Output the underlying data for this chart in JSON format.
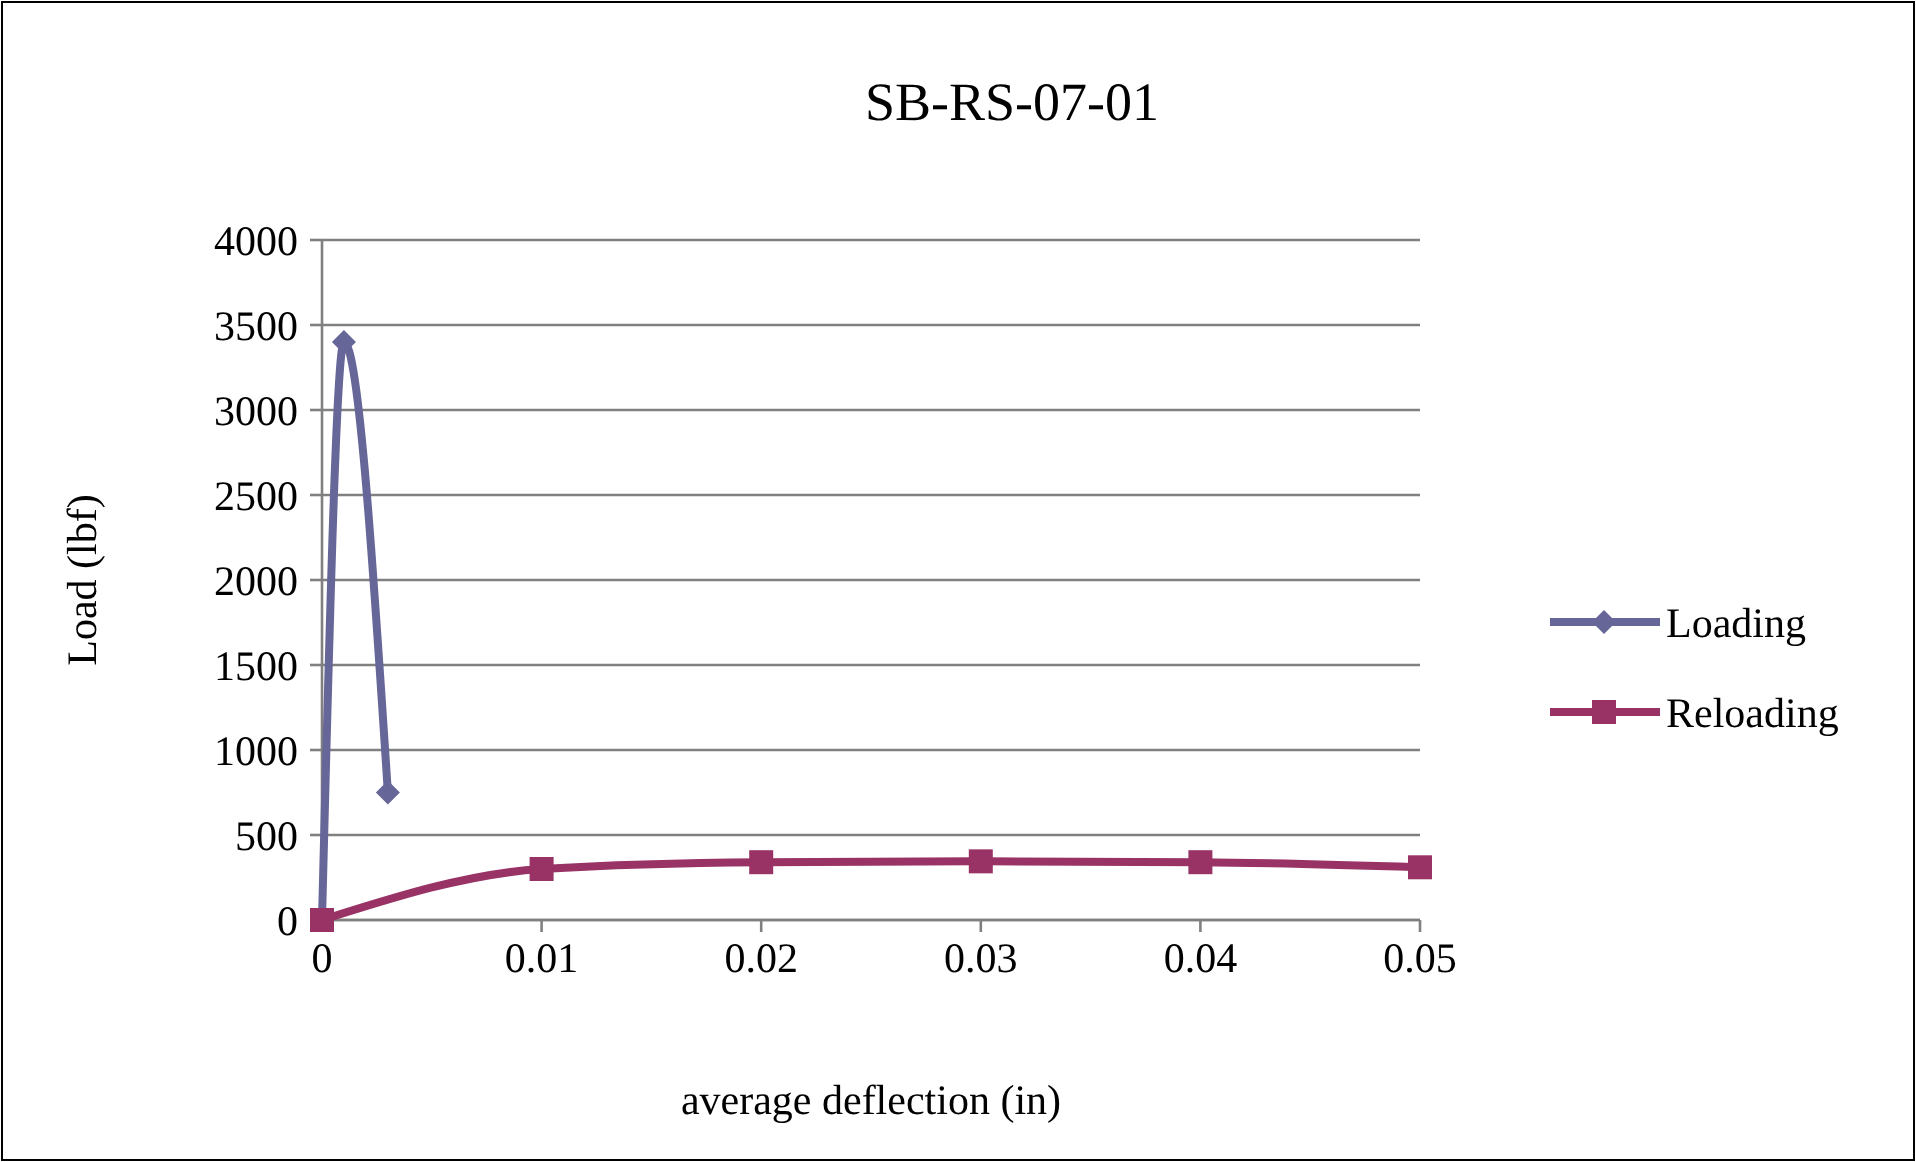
{
  "chart_data": {
    "type": "line",
    "title": "SB-RS-07-01",
    "xlabel": "average deflection (in)",
    "ylabel": "Load (lbf)",
    "xlim": [
      0,
      0.05
    ],
    "xticks": [
      0,
      0.01,
      0.02,
      0.03,
      0.04,
      0.05
    ],
    "ylim": [
      0,
      4000
    ],
    "yticks": [
      0,
      500,
      1000,
      1500,
      2000,
      2500,
      3000,
      3500,
      4000
    ],
    "grid": "y",
    "legend": "right",
    "line_style": "solid",
    "series": [
      {
        "name": "Loading",
        "color": "#666699",
        "marker": "diamond",
        "x": [
          0,
          0.001,
          0.003
        ],
        "values": [
          0,
          3400,
          750
        ]
      },
      {
        "name": "Reloading",
        "color": "#993366",
        "marker": "square",
        "x": [
          0,
          0.01,
          0.02,
          0.03,
          0.04,
          0.05
        ],
        "values": [
          0,
          300,
          340,
          345,
          340,
          310
        ]
      }
    ]
  }
}
